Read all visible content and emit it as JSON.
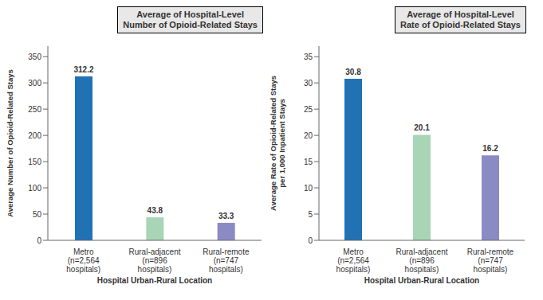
{
  "chart_data": [
    {
      "type": "bar",
      "title": "Average of Hospital-Level\nNumber of Opioid-Related Stays",
      "categories": [
        "Metro\n(n=2,564\nhospitals)",
        "Rural-adjacent\n(n=896\nhospitals)",
        "Rural-remote\n(n=747\nhospitals)"
      ],
      "values": [
        312.2,
        43.8,
        33.3
      ],
      "colors": [
        "#2171b5",
        "#a8d5b5",
        "#8b8bc4"
      ],
      "ylabel": "Average Number of Opioid-Related Stays",
      "xlabel": "Hospital Urban-Rural Location",
      "ylim": [
        0,
        370
      ],
      "yticks": [
        0,
        50,
        100,
        150,
        200,
        250,
        300,
        350
      ],
      "data_labels": true
    },
    {
      "type": "bar",
      "title": "Average of Hospital-Level\nRate of Opioid-Related Stays",
      "categories": [
        "Metro\n(n=2,564\nhospitals)",
        "Rural-adjacent\n(n=896\nhospitals)",
        "Rural-remote\n(n=747\nhospitals)"
      ],
      "values": [
        30.8,
        20.1,
        16.2
      ],
      "colors": [
        "#2171b5",
        "#a8d5b5",
        "#8b8bc4"
      ],
      "ylabel": "Average Rate of Opioid-Related Stays\nper 1,000 Inpatient Stays",
      "xlabel": "Hospital Urban-Rural Location",
      "ylim": [
        0,
        37
      ],
      "yticks": [
        0,
        5,
        10,
        15,
        20,
        25,
        30,
        35
      ],
      "data_labels": true
    }
  ]
}
